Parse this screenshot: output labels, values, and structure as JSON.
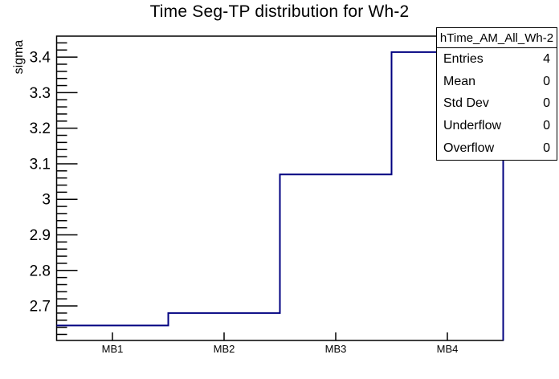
{
  "chart_data": {
    "type": "step-histogram",
    "title": "Time Seg-TP distribution for Wh-2",
    "categories": [
      "MB1",
      "MB2",
      "MB3",
      "MB4"
    ],
    "values": [
      2.645,
      2.68,
      3.07,
      3.414
    ],
    "xlabel": "",
    "ylabel": "sigma",
    "ylim": [
      2.603,
      3.459
    ],
    "y_major_ticks": [
      2.7,
      2.8,
      2.9,
      3.0,
      3.1,
      3.2,
      3.3,
      3.4
    ],
    "y_tick_labels": [
      "2.7",
      "2.8",
      "2.9",
      "3",
      "3.1",
      "3.2",
      "3.3",
      "3.4"
    ],
    "y_minor_step": 0.02,
    "grid": false,
    "legend_position": "none",
    "line_color": "#000080"
  },
  "stats_box": {
    "title": "hTime_AM_All_Wh-2",
    "rows": [
      {
        "label": "Entries",
        "value": "4"
      },
      {
        "label": "Mean",
        "value": "0"
      },
      {
        "label": "Std Dev",
        "value": "0"
      },
      {
        "label": "Underflow",
        "value": "0"
      },
      {
        "label": "Overflow",
        "value": "0"
      }
    ]
  },
  "colors": {
    "background": "#ffffff",
    "frame": "#000000",
    "histogram_line": "#000080",
    "text": "#000000"
  }
}
